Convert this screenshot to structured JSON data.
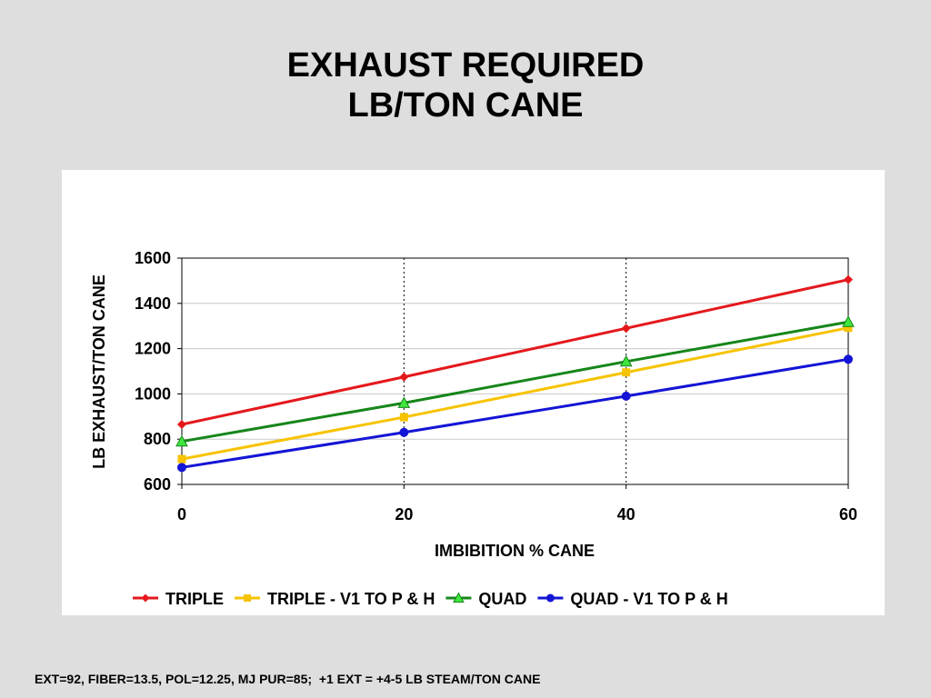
{
  "slide": {
    "title_line1": "EXHAUST REQUIRED",
    "title_line2": "LB/TON CANE",
    "footnote": "EXT=92, FIBER=13.5, POL=12.25, MJ PUR=85;  +1 EXT = +4-5 LB STEAM/TON CANE"
  },
  "chart_data": {
    "type": "line",
    "title": "EXHAUST REQUIRED LB/TON CANE",
    "xlabel": "IMBIBITION % CANE",
    "ylabel": "LB EXHAUST/TON CANE",
    "x": [
      0,
      20,
      40,
      60
    ],
    "xlim": [
      0,
      60
    ],
    "ylim": [
      600,
      1600
    ],
    "xticks": [
      "0",
      "20",
      "40",
      "60"
    ],
    "yticks": [
      "600",
      "800",
      "1000",
      "1200",
      "1400",
      "1600"
    ],
    "grid": {
      "horizontal": "solid-light",
      "vertical": "dotted"
    },
    "legend_position": "bottom",
    "series": [
      {
        "name": "TRIPLE",
        "values": [
          865,
          1075,
          1290,
          1505
        ],
        "color": "#e4181c",
        "marker": "diamond"
      },
      {
        "name": "TRIPLE - V1 TO P & H",
        "values": [
          712,
          897,
          1095,
          1292
        ],
        "color": "#f7c300",
        "marker": "square"
      },
      {
        "name": "QUAD",
        "values": [
          790,
          960,
          1143,
          1318
        ],
        "color": "#16861a",
        "marker": "triangle",
        "marker_fill": "#3ee63e"
      },
      {
        "name": "QUAD - V1 TO P & H",
        "values": [
          675,
          830,
          990,
          1153
        ],
        "color": "#1414d6",
        "marker": "circle"
      }
    ]
  }
}
